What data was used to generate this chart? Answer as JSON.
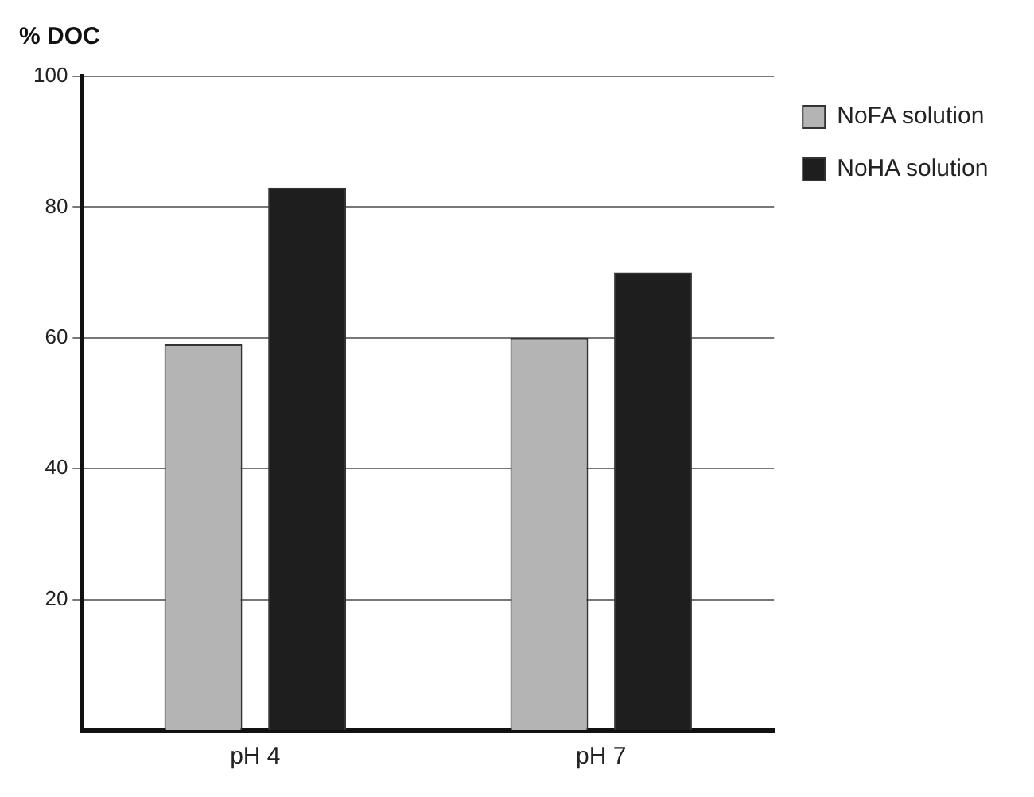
{
  "chart_data": {
    "type": "bar",
    "ylabel": "% DOC",
    "categories": [
      "pH 4",
      "pH 7"
    ],
    "series": [
      {
        "name": "NoFA solution",
        "color": "#b4b4b4",
        "values": [
          59,
          60
        ]
      },
      {
        "name": "NoHA solution",
        "color": "#1e1e1e",
        "values": [
          83,
          70
        ]
      }
    ],
    "ylim": [
      0,
      100
    ],
    "yticks": [
      20,
      40,
      60,
      80,
      100
    ],
    "grid": "y",
    "legend": "top right"
  }
}
